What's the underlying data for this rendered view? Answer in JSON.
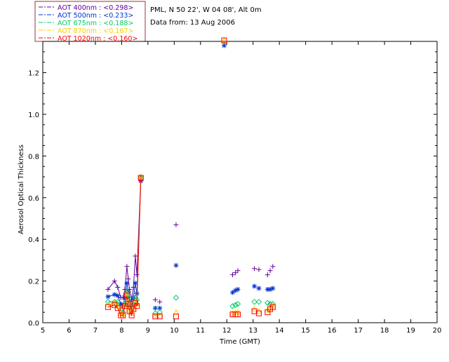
{
  "colors": {
    "foreground": "#000000",
    "background": "#ffffff",
    "aot_400": "#660099",
    "aot_500": "#0033cc",
    "aot_675": "#00cc66",
    "aot_870": "#ffcc00",
    "aot_1020": "#ff0000",
    "legend_border": "#993333"
  },
  "header": {
    "site_line": "PML, N 50 22', W 04 08', Alt 0m",
    "date_line": "Data from: 13 Aug 2006"
  },
  "legend": [
    {
      "key": "aot_400",
      "label": "AOT  400nm : <0.298>"
    },
    {
      "key": "aot_500",
      "label": "AOT  500nm : <0.233>"
    },
    {
      "key": "aot_675",
      "label": "AOT  675nm : <0.188>"
    },
    {
      "key": "aot_870",
      "label": "AOT  870nm : <0.167>"
    },
    {
      "key": "aot_1020",
      "label": "AOT 1020nm : <0.160>"
    }
  ],
  "chart_data": {
    "type": "scatter",
    "xlabel": "Time (GMT)",
    "ylabel": "Aerosol Optical Thickness",
    "xlim": [
      5,
      20
    ],
    "ylim": [
      0,
      1.35
    ],
    "xticks": [
      5,
      6,
      7,
      8,
      9,
      10,
      11,
      12,
      13,
      14,
      15,
      16,
      17,
      18,
      19,
      20
    ],
    "yticks": [
      0.0,
      0.2,
      0.4,
      0.6,
      0.8,
      1.0,
      1.2
    ],
    "ytick_labels": [
      "0.0",
      "0.2",
      "0.4",
      "0.6",
      "0.8",
      "1.0",
      "1.2"
    ],
    "grid": false,
    "legend_position": "top-left outside",
    "series": [
      {
        "name": "AOT  400nm : <0.298>",
        "key": "aot_400",
        "marker": "plus",
        "x": [
          7.48,
          7.73,
          7.85,
          7.97,
          8.05,
          8.12,
          8.2,
          8.25,
          8.3,
          8.38,
          8.45,
          8.52,
          8.58,
          8.73,
          9.28,
          9.45,
          10.07,
          12.22,
          12.33,
          12.42,
          13.05,
          13.22,
          13.55,
          13.65,
          13.75
        ],
        "y": [
          0.16,
          0.2,
          0.17,
          0.12,
          0.12,
          0.16,
          0.27,
          0.21,
          0.16,
          0.11,
          0.17,
          0.32,
          0.23,
          0.7,
          0.11,
          0.1,
          0.47,
          0.23,
          0.24,
          0.25,
          0.26,
          0.255,
          0.23,
          0.25,
          0.27
        ],
        "line_segments": [
          [
            0,
            13
          ]
        ]
      },
      {
        "name": "AOT  500nm : <0.233>",
        "key": "aot_500",
        "marker": "asterisk",
        "x": [
          7.48,
          7.73,
          7.85,
          7.97,
          8.05,
          8.12,
          8.2,
          8.25,
          8.3,
          8.38,
          8.45,
          8.52,
          8.58,
          8.73,
          9.28,
          9.45,
          10.07,
          11.9,
          12.22,
          12.33,
          12.42,
          13.05,
          13.22,
          13.55,
          13.65,
          13.75
        ],
        "y": [
          0.125,
          0.135,
          0.13,
          0.09,
          0.08,
          0.12,
          0.19,
          0.15,
          0.1,
          0.08,
          0.12,
          0.19,
          0.14,
          0.68,
          0.07,
          0.07,
          0.275,
          1.33,
          0.145,
          0.155,
          0.16,
          0.175,
          0.165,
          0.16,
          0.16,
          0.165
        ],
        "line_segments": [
          [
            0,
            13
          ]
        ]
      },
      {
        "name": "AOT  675nm : <0.188>",
        "key": "aot_675",
        "marker": "diamond",
        "x": [
          7.48,
          7.73,
          7.85,
          7.97,
          8.05,
          8.12,
          8.2,
          8.25,
          8.3,
          8.38,
          8.45,
          8.52,
          8.58,
          8.73,
          9.28,
          9.45,
          10.07,
          12.22,
          12.33,
          12.42,
          13.05,
          13.22,
          13.55,
          13.65,
          13.75
        ],
        "y": [
          0.1,
          0.1,
          0.1,
          0.06,
          0.05,
          0.09,
          0.15,
          0.12,
          0.08,
          0.06,
          0.09,
          0.12,
          0.11,
          0.7,
          0.045,
          0.05,
          0.12,
          0.08,
          0.085,
          0.09,
          0.1,
          0.1,
          0.095,
          0.09,
          0.09
        ],
        "line_segments": [
          [
            0,
            13
          ]
        ]
      },
      {
        "name": "AOT  870nm : <0.167>",
        "key": "aot_870",
        "marker": "triangle",
        "x": [
          7.48,
          7.73,
          7.85,
          7.97,
          8.05,
          8.12,
          8.2,
          8.25,
          8.3,
          8.38,
          8.45,
          8.52,
          8.58,
          8.73,
          9.28,
          9.45,
          10.07,
          11.9,
          12.22,
          12.33,
          12.42,
          13.05,
          13.22,
          13.55,
          13.65,
          13.75
        ],
        "y": [
          0.085,
          0.095,
          0.08,
          0.045,
          0.04,
          0.08,
          0.14,
          0.1,
          0.06,
          0.045,
          0.07,
          0.1,
          0.09,
          0.7,
          0.035,
          0.035,
          0.05,
          1.355,
          0.045,
          0.05,
          0.05,
          0.065,
          0.055,
          0.06,
          0.07,
          0.08
        ],
        "line_segments": [
          [
            0,
            13
          ]
        ]
      },
      {
        "name": "AOT 1020nm : <0.160>",
        "key": "aot_1020",
        "marker": "square",
        "x": [
          7.48,
          7.73,
          7.85,
          7.97,
          8.05,
          8.12,
          8.2,
          8.25,
          8.3,
          8.38,
          8.45,
          8.52,
          8.58,
          8.73,
          9.28,
          9.45,
          10.07,
          11.9,
          12.22,
          12.33,
          12.42,
          13.05,
          13.22,
          13.55,
          13.65,
          13.75
        ],
        "y": [
          0.075,
          0.085,
          0.07,
          0.035,
          0.035,
          0.08,
          0.13,
          0.09,
          0.055,
          0.035,
          0.065,
          0.095,
          0.08,
          0.695,
          0.03,
          0.03,
          0.03,
          1.355,
          0.04,
          0.04,
          0.04,
          0.055,
          0.045,
          0.05,
          0.065,
          0.075
        ],
        "line_segments": [
          [
            0,
            13
          ]
        ]
      }
    ]
  }
}
